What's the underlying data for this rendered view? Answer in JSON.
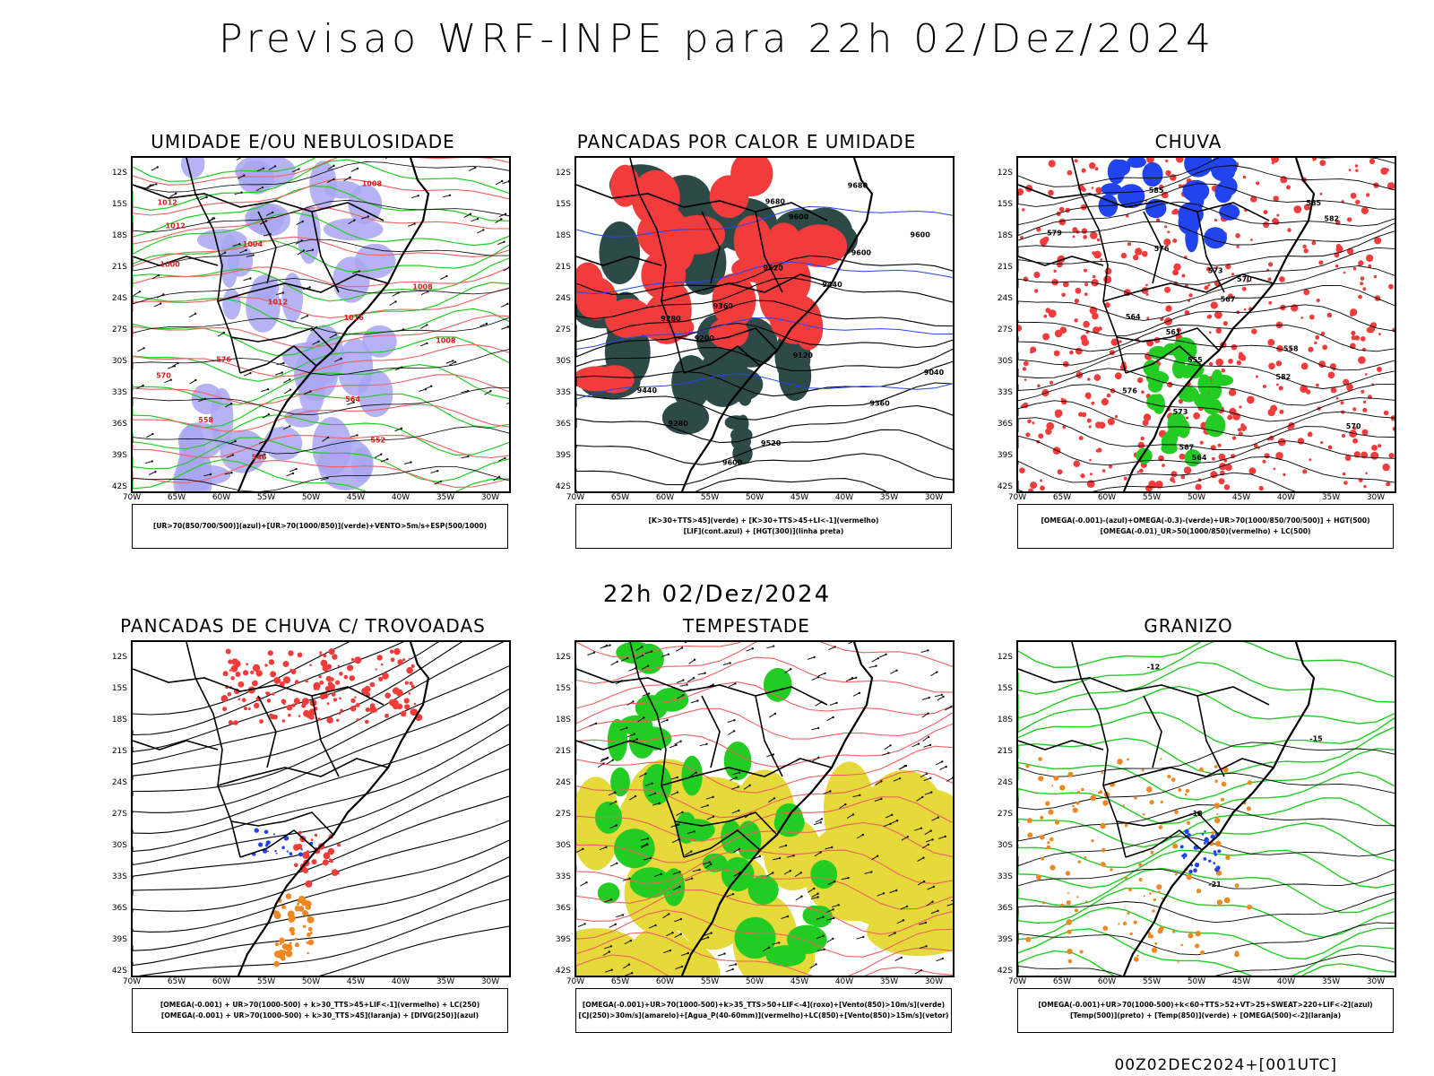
{
  "title": "Previsao WRF-INPE  para 22h 02/Dez/2024",
  "mid_date": "22h 02/Dez/2024",
  "stamp": "00Z02DEC2024+[001UTC]",
  "axes": {
    "lat_labels": [
      "12S",
      "15S",
      "18S",
      "21S",
      "24S",
      "27S",
      "30S",
      "33S",
      "36S",
      "39S",
      "42S"
    ],
    "lon_labels": [
      "70W",
      "65W",
      "60W",
      "55W",
      "50W",
      "45W",
      "40W",
      "35W",
      "30W"
    ]
  },
  "colors": {
    "red": "#f23c3c",
    "green": "#22cc22",
    "blue": "#2244ee",
    "lavender": "#a9a6f2",
    "dark_teal": "#2d4a49",
    "yellow": "#e6d93a",
    "orange": "#ee8822",
    "salmon": "#f06060"
  },
  "panels": [
    {
      "id": "umidade",
      "title": "UMIDADE E/OU NEBULOSIDADE",
      "legend": [
        "[UR>70(850/700/500)](azul)+[UR>70(1000/850)](verde)+VENTO>5m/s+ESP(500/1000)"
      ],
      "contour_labels": [
        "1008",
        "1012",
        "1012",
        "1004",
        "1000",
        "1008",
        "1012",
        "1016",
        "1008",
        "576",
        "570",
        "564",
        "558",
        "552",
        "546"
      ]
    },
    {
      "id": "pancadas_calor",
      "title": "PANCADAS POR CALOR E UMIDADE",
      "legend": [
        "[K>30+TTS>45](verde) + [K>30+TTS>45+LI<-1](vermelho)",
        "[LIF](cont.azul) + [HGT(300)](linha preta)"
      ],
      "contour_labels": [
        "9680",
        "9680",
        "9600",
        "9600",
        "9600",
        "9520",
        "9440",
        "9360",
        "9280",
        "9200",
        "9120",
        "9040",
        "9440",
        "9360",
        "9280",
        "9520",
        "9600"
      ]
    },
    {
      "id": "chuva",
      "title": "CHUVA",
      "legend": [
        "[OMEGA(-0.001)-(azul)+OMEGA(-0.3)-(verde)+UR>70(1000/850/700/500)] + HGT(500)",
        "[OMEGA(-0.01)_UR>50(1000/850)(vermelho) + LC(500)"
      ],
      "contour_labels": [
        "585",
        "585",
        "582",
        "579",
        "576",
        "573",
        "570",
        "567",
        "564",
        "561",
        "558",
        "555",
        "582",
        "576",
        "573",
        "570",
        "567",
        "564"
      ]
    },
    {
      "id": "trovoadas",
      "title": "PANCADAS DE CHUVA C/ TROVOADAS",
      "legend": [
        "[OMEGA(-0.001) + UR>70(1000-500) + k>30_TTS>45+LIF<-1](vermelho) + LC(250)",
        "[OMEGA(-0.001) + UR>70(1000-500) + k>30_TTS>45](laranja) + [DIVG(250)](azul)"
      ],
      "contour_labels": []
    },
    {
      "id": "tempestade",
      "title": "TEMPESTADE",
      "legend": [
        "[OMEGA(-0.001)+UR>70(1000-500)+k>35_TTS>50+LIF<-4](roxo)+[Vento(850)>10m/s](verde)",
        "[CJ(250)>30m/s](amarelo)+[Agua_P(40-60mm)](vermelho)+LC(850)+[Vento(850)>15m/s](vetor)"
      ],
      "contour_labels": []
    },
    {
      "id": "granizo",
      "title": "GRANIZO",
      "legend": [
        "[OMEGA(-0.001)+UR>70(1000-500)+k<60+TTS>52+VT>25+SWEAT>220+LIF<-2](azul)",
        "[Temp(500)](preto) + [Temp(850)](verde) + [OMEGA(500)<-2](laranja)"
      ],
      "contour_labels": [
        "-12",
        "-15",
        "-18",
        "-21"
      ]
    }
  ]
}
